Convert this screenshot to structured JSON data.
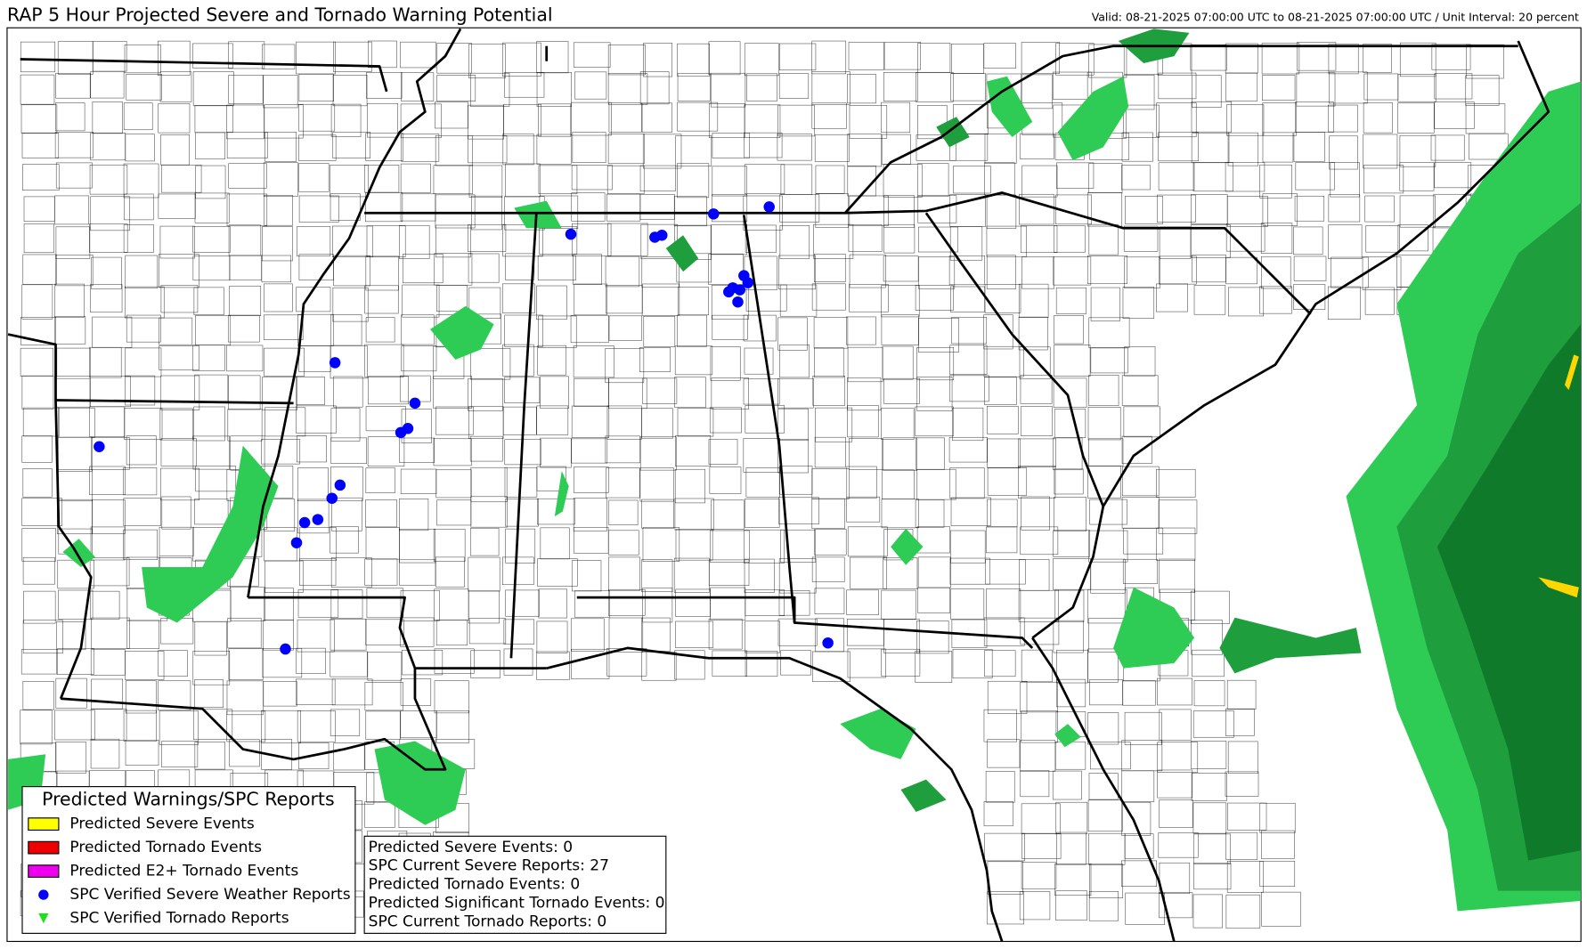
{
  "header": {
    "title": "RAP 5 Hour Projected Severe and Tornado Warning Potential",
    "valid": "Valid: 08-21-2025 07:00:00 UTC to 08-21-2025 07:00:00 UTC / Unit Interval: 20 percent"
  },
  "legend": {
    "title": "Predicted Warnings/SPC Reports",
    "items": [
      {
        "label": "Predicted Severe Events",
        "color": "#ffff00",
        "marker": "box"
      },
      {
        "label": "Predicted Tornado Events",
        "color": "#ee0000",
        "marker": "box"
      },
      {
        "label": "Predicted E2+ Tornado Events",
        "color": "#ee00ee",
        "marker": "box"
      },
      {
        "label": "SPC Verified Severe Weather Reports",
        "color": "#0000ff",
        "marker": "dot"
      },
      {
        "label": "SPC Verified Tornado Reports",
        "color": "#22dd22",
        "marker": "triangle"
      }
    ]
  },
  "stats": [
    "Predicted Severe Events: 0",
    "SPC Current Severe Reports: 27",
    "Predicted Tornado Events: 0",
    "Predicted Significant Tornado Events: 0",
    "SPC Current Tornado Reports: 0"
  ]
}
